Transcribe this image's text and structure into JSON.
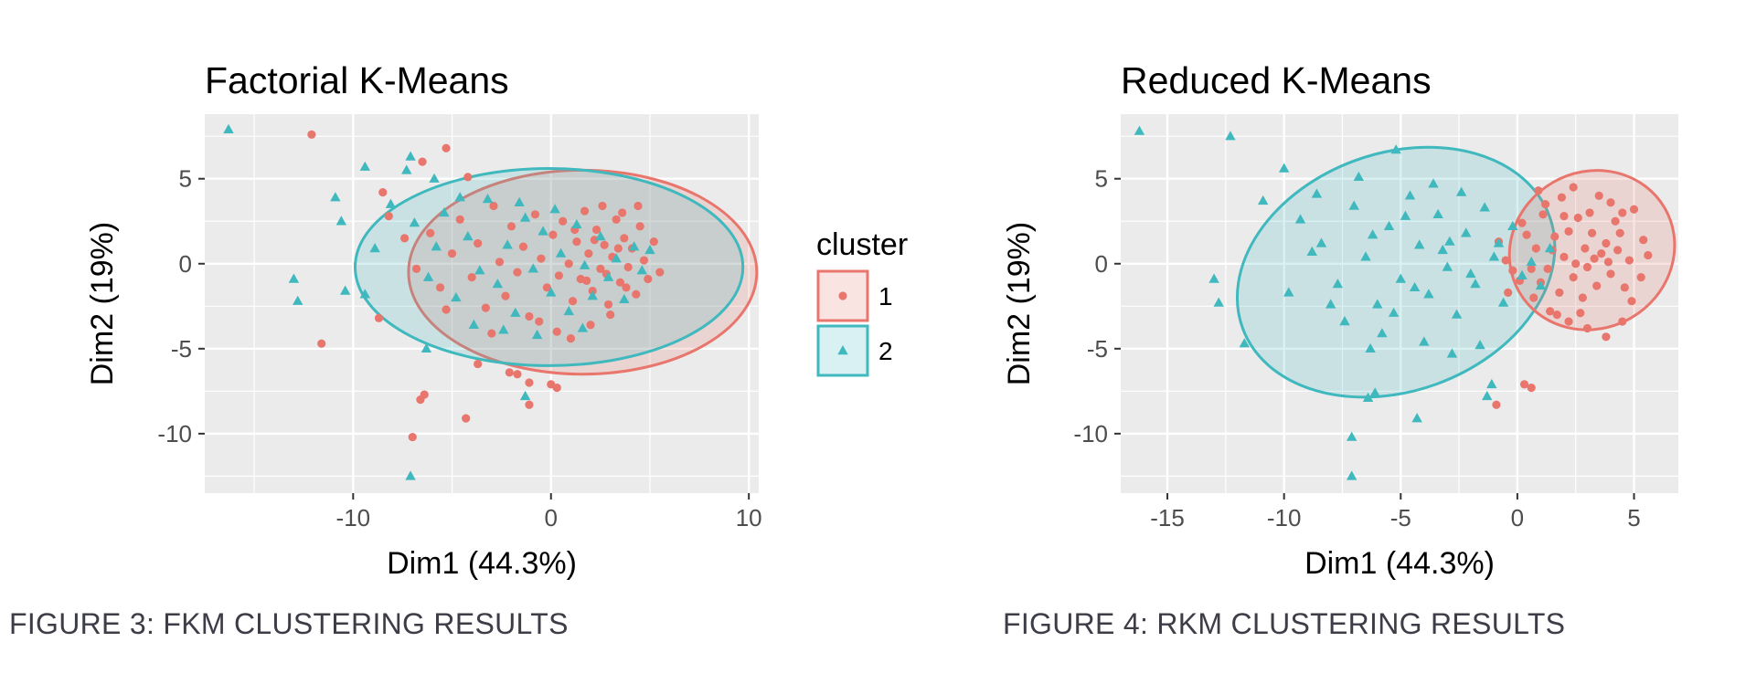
{
  "captions": {
    "fig3": "FIGURE 3: FKM CLUSTERING RESULTS",
    "fig4": "FIGURE 4: RKM CLUSTERING RESULTS"
  },
  "colors": {
    "cluster1": "#E8766D",
    "cluster2": "#3FB8BE",
    "panel": "#EBEBEB",
    "grid": "#FFFFFF",
    "text": "#000000",
    "tick_text": "#4D4D4D"
  },
  "legend": {
    "title": "cluster",
    "placement": "right of left chart",
    "entries": [
      {
        "label": "1",
        "shape": "circle",
        "color_key": "cluster1"
      },
      {
        "label": "2",
        "shape": "triangle",
        "color_key": "cluster2"
      }
    ]
  },
  "chart_data": [
    {
      "type": "scatter",
      "title": "Factorial K-Means",
      "xlabel": "Dim1 (44.3%)",
      "ylabel": "Dim2 (19%)",
      "xlim": [
        -17.5,
        10.5
      ],
      "ylim": [
        -13.5,
        8.8
      ],
      "xticks": [
        -10,
        0,
        10
      ],
      "yticks": [
        5,
        0,
        -5,
        -10
      ],
      "grid": true,
      "ellipses": [
        {
          "cluster": "1",
          "cx": 1.6,
          "cy": -0.5,
          "rx": 8.8,
          "ry": 6.0,
          "angle": 0
        },
        {
          "cluster": "2",
          "cx": -0.1,
          "cy": -0.2,
          "rx": 9.8,
          "ry": 5.8,
          "angle": 0
        }
      ],
      "series": [
        {
          "name": "1",
          "shape": "circle",
          "points": [
            [
              -12.1,
              7.6
            ],
            [
              -5.3,
              6.8
            ],
            [
              -6.5,
              6.0
            ],
            [
              -4.2,
              5.1
            ],
            [
              -8.5,
              4.2
            ],
            [
              -11.6,
              -4.7
            ],
            [
              -8.7,
              -3.2
            ],
            [
              -6.4,
              -7.7
            ],
            [
              -6.6,
              -8.0
            ],
            [
              -7.0,
              -10.2
            ],
            [
              -4.3,
              -9.1
            ],
            [
              -3.7,
              -5.9
            ],
            [
              -2.1,
              -6.4
            ],
            [
              -1.7,
              -6.5
            ],
            [
              -1.1,
              -7.0
            ],
            [
              -1.1,
              -8.3
            ],
            [
              0.0,
              -7.1
            ],
            [
              0.3,
              -7.3
            ],
            [
              -8.2,
              2.8
            ],
            [
              -7.4,
              1.5
            ],
            [
              -6.8,
              -0.3
            ],
            [
              -6.1,
              1.8
            ],
            [
              -5.6,
              -1.4
            ],
            [
              -5.0,
              0.6
            ],
            [
              -4.6,
              2.6
            ],
            [
              -4.0,
              -0.8
            ],
            [
              -3.7,
              1.2
            ],
            [
              -3.3,
              -2.6
            ],
            [
              -2.9,
              3.4
            ],
            [
              -2.6,
              0.1
            ],
            [
              -2.3,
              -1.9
            ],
            [
              -2.0,
              2.2
            ],
            [
              -1.7,
              -0.5
            ],
            [
              -1.4,
              1.0
            ],
            [
              -1.1,
              -3.1
            ],
            [
              -0.8,
              2.9
            ],
            [
              -0.5,
              0.3
            ],
            [
              -0.2,
              -1.4
            ],
            [
              0.1,
              1.7
            ],
            [
              0.4,
              -0.7
            ],
            [
              0.6,
              2.5
            ],
            [
              0.9,
              0.0
            ],
            [
              1.1,
              -2.2
            ],
            [
              1.3,
              1.3
            ],
            [
              1.5,
              -0.9
            ],
            [
              1.7,
              3.1
            ],
            [
              1.9,
              0.6
            ],
            [
              2.1,
              -1.6
            ],
            [
              2.3,
              2.0
            ],
            [
              2.5,
              -0.3
            ],
            [
              2.7,
              1.1
            ],
            [
              2.9,
              -2.4
            ],
            [
              3.1,
              0.4
            ],
            [
              3.3,
              2.6
            ],
            [
              3.5,
              -1.1
            ],
            [
              3.7,
              1.5
            ],
            [
              3.9,
              -0.2
            ],
            [
              4.1,
              0.9
            ],
            [
              4.3,
              -1.8
            ],
            [
              4.5,
              2.2
            ],
            [
              4.7,
              0.2
            ],
            [
              4.9,
              -0.9
            ],
            [
              5.2,
              1.3
            ],
            [
              5.5,
              -0.5
            ],
            [
              1.0,
              -4.4
            ],
            [
              2.0,
              -3.6
            ],
            [
              3.0,
              -3.0
            ],
            [
              0.3,
              -4.0
            ],
            [
              -0.6,
              -3.4
            ],
            [
              -3.0,
              -4.1
            ],
            [
              -5.3,
              -2.7
            ],
            [
              2.6,
              3.4
            ],
            [
              3.6,
              3.0
            ],
            [
              4.4,
              3.4
            ],
            [
              1.2,
              2.0
            ],
            [
              2.2,
              1.4
            ],
            [
              3.4,
              0.9
            ],
            [
              1.8,
              -1.0
            ],
            [
              2.8,
              -0.6
            ],
            [
              3.8,
              -1.4
            ]
          ]
        },
        {
          "name": "2",
          "shape": "triangle",
          "points": [
            [
              -16.3,
              7.9
            ],
            [
              -9.4,
              5.7
            ],
            [
              -7.3,
              5.5
            ],
            [
              -7.1,
              6.3
            ],
            [
              -5.9,
              5.0
            ],
            [
              -10.9,
              3.9
            ],
            [
              -10.6,
              2.5
            ],
            [
              -13.0,
              -0.9
            ],
            [
              -12.8,
              -2.2
            ],
            [
              -10.4,
              -1.6
            ],
            [
              -9.4,
              -1.8
            ],
            [
              -8.9,
              0.9
            ],
            [
              -6.3,
              -5.0
            ],
            [
              -7.1,
              -12.5
            ],
            [
              -1.3,
              -7.8
            ],
            [
              -8.1,
              3.5
            ],
            [
              -6.9,
              2.4
            ],
            [
              -6.2,
              -0.8
            ],
            [
              -5.4,
              3.0
            ],
            [
              -4.8,
              -2.0
            ],
            [
              -4.2,
              1.6
            ],
            [
              -3.6,
              -0.4
            ],
            [
              -3.2,
              3.8
            ],
            [
              -2.7,
              -1.2
            ],
            [
              -2.2,
              1.1
            ],
            [
              -1.8,
              -2.9
            ],
            [
              -1.3,
              2.7
            ],
            [
              -0.9,
              -0.3
            ],
            [
              -0.4,
              1.9
            ],
            [
              0.0,
              -1.7
            ],
            [
              0.5,
              0.6
            ],
            [
              0.9,
              -2.8
            ],
            [
              1.3,
              2.3
            ],
            [
              1.7,
              -0.1
            ],
            [
              2.1,
              -1.9
            ],
            [
              2.5,
              1.6
            ],
            [
              2.9,
              -0.8
            ],
            [
              3.3,
              0.3
            ],
            [
              3.7,
              -2.1
            ],
            [
              4.2,
              1.0
            ],
            [
              4.6,
              -0.4
            ],
            [
              5.0,
              0.8
            ],
            [
              -3.9,
              -3.6
            ],
            [
              -2.4,
              -3.9
            ],
            [
              -0.7,
              -4.2
            ],
            [
              1.6,
              -3.8
            ],
            [
              -4.6,
              3.9
            ],
            [
              -1.6,
              3.6
            ],
            [
              0.2,
              3.2
            ],
            [
              -5.8,
              1.0
            ]
          ]
        }
      ]
    },
    {
      "type": "scatter",
      "title": "Reduced K-Means",
      "xlabel": "Dim1 (44.3%)",
      "ylabel": "Dim2 (19%)",
      "xlim": [
        -17.0,
        6.9
      ],
      "ylim": [
        -13.5,
        8.8
      ],
      "xticks": [
        -15,
        -10,
        -5,
        0,
        5
      ],
      "yticks": [
        5,
        0,
        -5,
        -10
      ],
      "grid": true,
      "ellipses": [
        {
          "cluster": "2",
          "cx": -5.2,
          "cy": -0.5,
          "rx": 7.0,
          "ry": 7.0,
          "angle": -20
        },
        {
          "cluster": "1",
          "cx": 3.2,
          "cy": 0.8,
          "rx": 3.6,
          "ry": 4.6,
          "angle": -30
        }
      ],
      "series": [
        {
          "name": "1",
          "shape": "circle",
          "points": [
            [
              0.3,
              -7.1
            ],
            [
              0.6,
              -7.3
            ],
            [
              -0.9,
              -8.3
            ],
            [
              0.9,
              4.3
            ],
            [
              1.9,
              3.9
            ],
            [
              2.4,
              4.5
            ],
            [
              3.5,
              4.0
            ],
            [
              4.5,
              3.0
            ],
            [
              5.0,
              3.2
            ],
            [
              5.4,
              1.4
            ],
            [
              5.6,
              0.5
            ],
            [
              5.3,
              -0.8
            ],
            [
              4.9,
              -2.2
            ],
            [
              4.5,
              -3.4
            ],
            [
              3.8,
              -4.3
            ],
            [
              3.0,
              -3.8
            ],
            [
              2.2,
              -3.4
            ],
            [
              1.4,
              -2.8
            ],
            [
              0.7,
              -2.0
            ],
            [
              0.1,
              -1.0
            ],
            [
              -0.5,
              0.2
            ],
            [
              -0.8,
              1.3
            ],
            [
              0.2,
              2.4
            ],
            [
              1.1,
              2.9
            ],
            [
              1.6,
              1.6
            ],
            [
              2.0,
              0.4
            ],
            [
              2.4,
              -0.8
            ],
            [
              2.8,
              -2.0
            ],
            [
              3.2,
              1.8
            ],
            [
              3.6,
              0.6
            ],
            [
              4.0,
              -0.6
            ],
            [
              4.4,
              1.8
            ],
            [
              4.8,
              0.2
            ],
            [
              1.3,
              -0.3
            ],
            [
              0.8,
              0.9
            ],
            [
              2.6,
              2.7
            ],
            [
              3.4,
              -1.3
            ],
            [
              4.2,
              2.5
            ],
            [
              1.8,
              -1.7
            ],
            [
              0.4,
              1.7
            ],
            [
              2.9,
              0.9
            ],
            [
              3.8,
              1.2
            ],
            [
              2.2,
              1.9
            ],
            [
              1.0,
              -1.1
            ],
            [
              4.6,
              -1.4
            ],
            [
              3.0,
              -0.2
            ],
            [
              2.5,
              0.0
            ],
            [
              3.3,
              0.3
            ],
            [
              3.9,
              0.1
            ],
            [
              4.3,
              0.8
            ],
            [
              2.0,
              2.8
            ],
            [
              1.5,
              0.8
            ],
            [
              0.6,
              -0.3
            ],
            [
              -0.2,
              -0.4
            ],
            [
              -0.4,
              -1.7
            ],
            [
              3.1,
              3.0
            ],
            [
              4.0,
              3.6
            ],
            [
              1.2,
              3.5
            ],
            [
              2.7,
              -2.9
            ],
            [
              1.7,
              -3.0
            ]
          ]
        },
        {
          "name": "2",
          "shape": "triangle",
          "points": [
            [
              -16.2,
              7.8
            ],
            [
              -12.3,
              7.5
            ],
            [
              -10.0,
              5.6
            ],
            [
              -10.9,
              3.7
            ],
            [
              -8.6,
              4.1
            ],
            [
              -5.2,
              6.7
            ],
            [
              -13.0,
              -0.9
            ],
            [
              -12.8,
              -2.3
            ],
            [
              -11.7,
              -4.7
            ],
            [
              -9.8,
              -1.7
            ],
            [
              -8.8,
              0.7
            ],
            [
              -6.3,
              -5.0
            ],
            [
              -6.1,
              -7.6
            ],
            [
              -6.4,
              -7.9
            ],
            [
              -4.3,
              -9.1
            ],
            [
              -7.1,
              -10.2
            ],
            [
              -7.1,
              -12.5
            ],
            [
              -1.3,
              -7.8
            ],
            [
              -1.1,
              -7.1
            ],
            [
              -9.3,
              2.6
            ],
            [
              -8.4,
              1.2
            ],
            [
              -7.7,
              -1.2
            ],
            [
              -7.0,
              3.4
            ],
            [
              -6.5,
              0.4
            ],
            [
              -6.0,
              -2.4
            ],
            [
              -5.5,
              2.2
            ],
            [
              -5.0,
              -0.9
            ],
            [
              -4.6,
              4.0
            ],
            [
              -4.2,
              1.1
            ],
            [
              -3.8,
              -1.8
            ],
            [
              -3.4,
              2.9
            ],
            [
              -3.0,
              -0.2
            ],
            [
              -2.6,
              -3.0
            ],
            [
              -2.2,
              1.8
            ],
            [
              -1.8,
              -1.2
            ],
            [
              -1.4,
              3.3
            ],
            [
              -1.0,
              0.4
            ],
            [
              -0.6,
              -2.3
            ],
            [
              -0.2,
              2.2
            ],
            [
              0.2,
              -0.7
            ],
            [
              -7.4,
              -3.4
            ],
            [
              -5.8,
              -4.1
            ],
            [
              -4.0,
              -4.6
            ],
            [
              -2.8,
              -5.3
            ],
            [
              -1.6,
              -4.8
            ],
            [
              -3.6,
              4.7
            ],
            [
              -6.8,
              5.1
            ],
            [
              -2.4,
              4.2
            ],
            [
              -4.8,
              2.8
            ],
            [
              -3.2,
              0.8
            ],
            [
              -5.3,
              -2.9
            ],
            [
              -2.0,
              -0.6
            ],
            [
              -0.8,
              1.2
            ],
            [
              0.6,
              0.1
            ],
            [
              1.0,
              -1.3
            ],
            [
              1.4,
              0.9
            ],
            [
              -8.0,
              -2.4
            ],
            [
              -6.2,
              1.7
            ],
            [
              -4.4,
              -1.4
            ],
            [
              -2.9,
              1.3
            ]
          ]
        }
      ]
    }
  ]
}
